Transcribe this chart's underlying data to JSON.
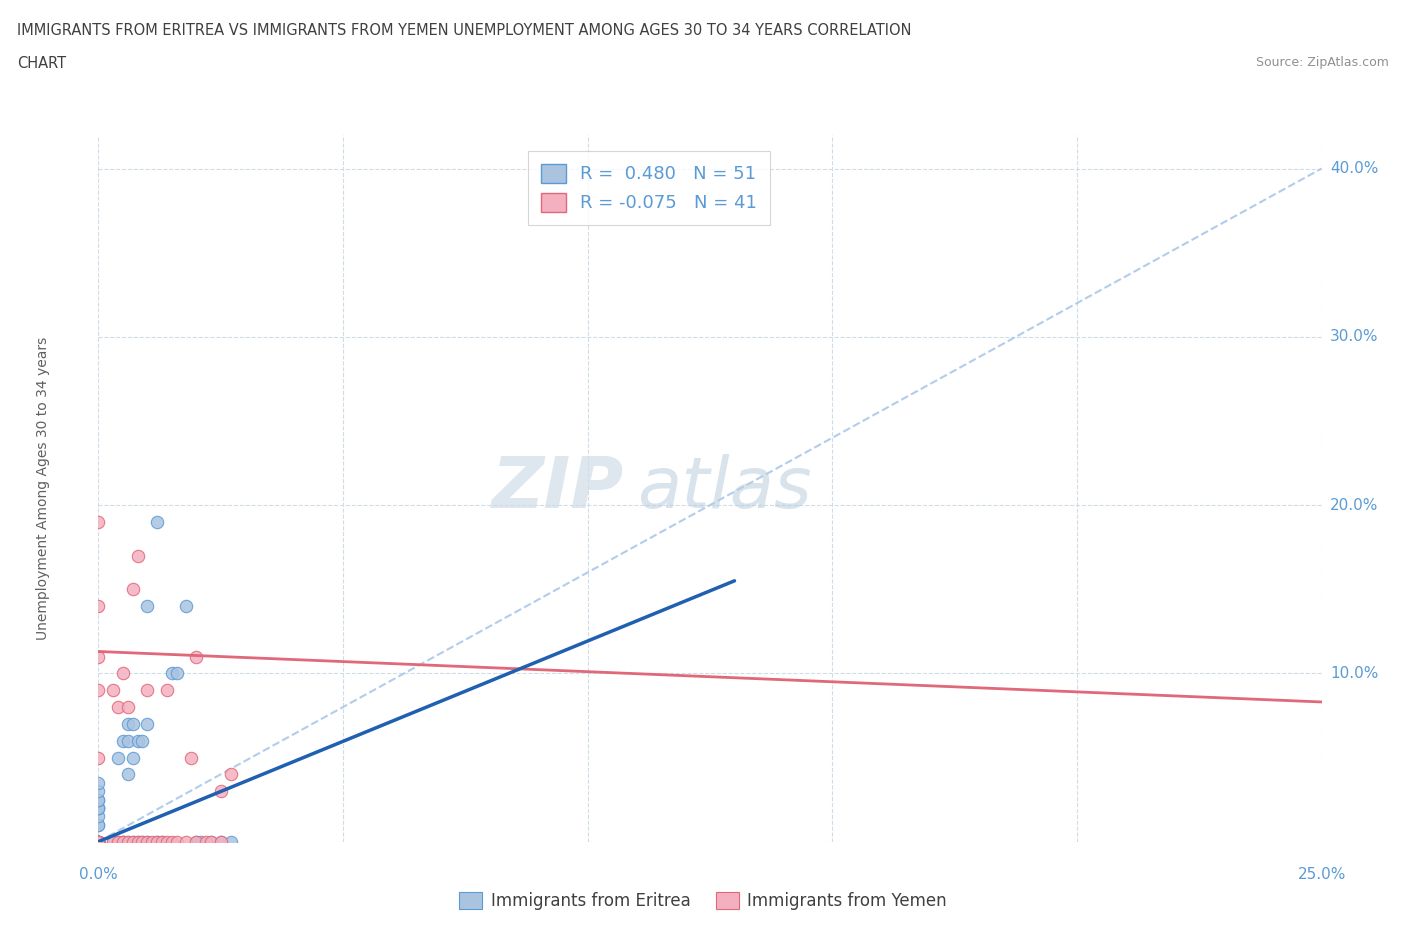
{
  "title_line1": "IMMIGRANTS FROM ERITREA VS IMMIGRANTS FROM YEMEN UNEMPLOYMENT AMONG AGES 30 TO 34 YEARS CORRELATION",
  "title_line2": "CHART",
  "source_text": "Source: ZipAtlas.com",
  "ylabel": "Unemployment Among Ages 30 to 34 years",
  "xlim": [
    0.0,
    0.25
  ],
  "ylim": [
    0.0,
    0.42
  ],
  "eritrea_R": 0.48,
  "eritrea_N": 51,
  "yemen_R": -0.075,
  "yemen_N": 41,
  "eritrea_color": "#aac4e0",
  "eritrea_edge": "#5b9bd5",
  "yemen_color": "#f4b0bf",
  "yemen_edge": "#e06878",
  "eritrea_line_color": "#2060b0",
  "yemen_line_color": "#e06878",
  "ref_line_color": "#aac8e8",
  "watermark_zip": "ZIP",
  "watermark_atlas": "atlas",
  "background_color": "#ffffff",
  "grid_color": "#d0dce8",
  "title_color": "#404040",
  "tick_label_color": "#5b9bd5",
  "ylabel_color": "#606060",
  "source_color": "#909090",
  "eritrea_x": [
    0.0,
    0.0,
    0.0,
    0.0,
    0.0,
    0.0,
    0.0,
    0.0,
    0.0,
    0.0,
    0.0,
    0.0,
    0.0,
    0.0,
    0.0,
    0.0,
    0.0,
    0.0,
    0.0,
    0.0,
    0.003,
    0.004,
    0.004,
    0.005,
    0.005,
    0.005,
    0.006,
    0.006,
    0.006,
    0.006,
    0.007,
    0.007,
    0.007,
    0.008,
    0.008,
    0.009,
    0.009,
    0.01,
    0.01,
    0.01,
    0.012,
    0.012,
    0.013,
    0.015,
    0.016,
    0.018,
    0.02,
    0.021,
    0.023,
    0.025,
    0.027
  ],
  "eritrea_y": [
    0.0,
    0.0,
    0.0,
    0.0,
    0.0,
    0.0,
    0.0,
    0.0,
    0.0,
    0.0,
    0.01,
    0.01,
    0.015,
    0.02,
    0.02,
    0.02,
    0.025,
    0.025,
    0.03,
    0.035,
    0.0,
    0.0,
    0.05,
    0.0,
    0.0,
    0.06,
    0.0,
    0.04,
    0.06,
    0.07,
    0.0,
    0.05,
    0.07,
    0.0,
    0.06,
    0.0,
    0.06,
    0.0,
    0.07,
    0.14,
    0.0,
    0.19,
    0.0,
    0.1,
    0.1,
    0.14,
    0.0,
    0.0,
    0.0,
    0.0,
    0.0
  ],
  "yemen_x": [
    0.0,
    0.0,
    0.0,
    0.0,
    0.0,
    0.0,
    0.0,
    0.0,
    0.0,
    0.0,
    0.003,
    0.003,
    0.004,
    0.004,
    0.005,
    0.005,
    0.006,
    0.006,
    0.007,
    0.007,
    0.008,
    0.008,
    0.009,
    0.01,
    0.01,
    0.011,
    0.012,
    0.013,
    0.014,
    0.014,
    0.015,
    0.016,
    0.018,
    0.019,
    0.02,
    0.02,
    0.022,
    0.023,
    0.025,
    0.025,
    0.027
  ],
  "yemen_y": [
    0.0,
    0.0,
    0.0,
    0.0,
    0.0,
    0.05,
    0.09,
    0.11,
    0.14,
    0.19,
    0.0,
    0.09,
    0.0,
    0.08,
    0.0,
    0.1,
    0.0,
    0.08,
    0.0,
    0.15,
    0.0,
    0.17,
    0.0,
    0.0,
    0.09,
    0.0,
    0.0,
    0.0,
    0.0,
    0.09,
    0.0,
    0.0,
    0.0,
    0.05,
    0.0,
    0.11,
    0.0,
    0.0,
    0.0,
    0.03,
    0.04
  ],
  "eritrea_line_x0": 0.0,
  "eritrea_line_y0": 0.0,
  "eritrea_line_x1": 0.13,
  "eritrea_line_y1": 0.155,
  "yemen_line_x0": 0.0,
  "yemen_line_y0": 0.113,
  "yemen_line_x1": 0.25,
  "yemen_line_y1": 0.083
}
